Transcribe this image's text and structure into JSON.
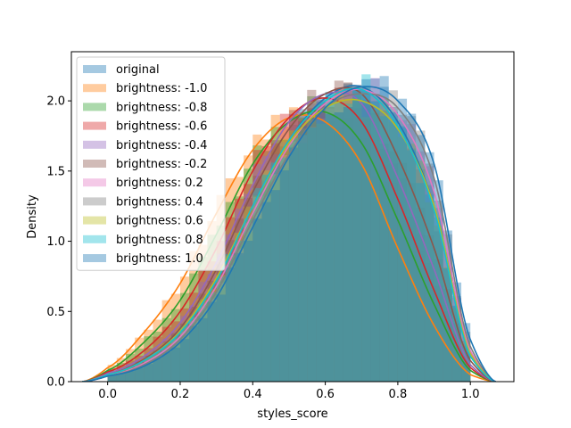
{
  "chart_data": {
    "type": "histogram+kde",
    "xlabel": "styles_score",
    "ylabel": "Density",
    "xlim": [
      -0.1,
      1.12
    ],
    "ylim": [
      0.0,
      2.35
    ],
    "x_ticks": [
      0.0,
      0.2,
      0.4,
      0.6,
      0.8,
      1.0
    ],
    "x_tick_labels": [
      "0.0",
      "0.2",
      "0.4",
      "0.6",
      "0.8",
      "1.0"
    ],
    "y_ticks": [
      0.0,
      0.5,
      1.0,
      1.5,
      2.0
    ],
    "y_tick_labels": [
      "0.0",
      "0.5",
      "1.0",
      "1.5",
      "2.0"
    ],
    "bin_edges": [
      0.0,
      0.025,
      0.05,
      0.075,
      0.1,
      0.125,
      0.15,
      0.175,
      0.2,
      0.225,
      0.25,
      0.275,
      0.3,
      0.325,
      0.35,
      0.375,
      0.4,
      0.425,
      0.45,
      0.475,
      0.5,
      0.525,
      0.55,
      0.575,
      0.6,
      0.625,
      0.65,
      0.675,
      0.7,
      0.725,
      0.75,
      0.775,
      0.8,
      0.825,
      0.85,
      0.875,
      0.9,
      0.925,
      0.95,
      0.975,
      1.0
    ],
    "legend": {
      "position": "upper-left"
    },
    "series": [
      {
        "name": "original",
        "color": "#1f77b4",
        "peak": 0.7,
        "spread": 0.19,
        "skew": 3.2,
        "x": [
          0.0,
          0.1,
          0.2,
          0.3,
          0.4,
          0.5,
          0.6,
          0.7,
          0.8,
          0.9,
          1.0
        ],
        "values": [
          0.05,
          0.15,
          0.35,
          0.72,
          1.25,
          1.72,
          2.02,
          2.1,
          1.85,
          1.25,
          0.2
        ]
      },
      {
        "name": "brightness: -1.0",
        "color": "#ff7f0e",
        "peak": 0.6,
        "spread": 0.2,
        "skew": 2.6,
        "x": [
          0.0,
          0.1,
          0.2,
          0.3,
          0.4,
          0.5,
          0.6,
          0.7,
          0.8,
          0.9,
          1.0
        ],
        "values": [
          0.1,
          0.35,
          0.7,
          1.2,
          1.65,
          1.88,
          1.85,
          1.55,
          0.95,
          0.4,
          0.05
        ]
      },
      {
        "name": "brightness: -0.8",
        "color": "#2ca02c",
        "peak": 0.63,
        "spread": 0.2,
        "skew": 2.8,
        "x": [
          0.0,
          0.1,
          0.2,
          0.3,
          0.4,
          0.5,
          0.6,
          0.7,
          0.8,
          0.9,
          1.0
        ],
        "values": [
          0.08,
          0.28,
          0.58,
          1.05,
          1.55,
          1.85,
          1.92,
          1.7,
          1.15,
          0.55,
          0.08
        ]
      },
      {
        "name": "brightness: -0.6",
        "color": "#d62728",
        "peak": 0.64,
        "spread": 0.19,
        "skew": 2.9,
        "x": [
          0.0,
          0.1,
          0.2,
          0.3,
          0.4,
          0.5,
          0.6,
          0.7,
          0.8,
          0.9,
          1.0
        ],
        "values": [
          0.07,
          0.22,
          0.5,
          0.95,
          1.5,
          1.88,
          2.02,
          1.85,
          1.3,
          0.65,
          0.1
        ]
      },
      {
        "name": "brightness: -0.4",
        "color": "#9467bd",
        "peak": 0.67,
        "spread": 0.19,
        "skew": 3.0,
        "x": [
          0.0,
          0.1,
          0.2,
          0.3,
          0.4,
          0.5,
          0.6,
          0.7,
          0.8,
          0.9,
          1.0
        ],
        "values": [
          0.06,
          0.18,
          0.42,
          0.85,
          1.4,
          1.85,
          2.05,
          1.98,
          1.45,
          0.8,
          0.12
        ]
      },
      {
        "name": "brightness: -0.2",
        "color": "#8c564b",
        "peak": 0.68,
        "spread": 0.19,
        "skew": 3.1,
        "x": [
          0.0,
          0.1,
          0.2,
          0.3,
          0.4,
          0.5,
          0.6,
          0.7,
          0.8,
          0.9,
          1.0
        ],
        "values": [
          0.05,
          0.16,
          0.38,
          0.8,
          1.35,
          1.8,
          2.05,
          2.05,
          1.6,
          0.95,
          0.15
        ]
      },
      {
        "name": "brightness: 0.2",
        "color": "#e377c2",
        "peak": 0.71,
        "spread": 0.19,
        "skew": 3.3,
        "x": [
          0.0,
          0.1,
          0.2,
          0.3,
          0.4,
          0.5,
          0.6,
          0.7,
          0.8,
          0.9,
          1.0
        ],
        "values": [
          0.04,
          0.13,
          0.32,
          0.68,
          1.2,
          1.68,
          1.98,
          2.08,
          1.9,
          1.35,
          0.22
        ]
      },
      {
        "name": "brightness: 0.4",
        "color": "#7f7f7f",
        "peak": 0.72,
        "spread": 0.19,
        "skew": 3.4,
        "x": [
          0.0,
          0.1,
          0.2,
          0.3,
          0.4,
          0.5,
          0.6,
          0.7,
          0.8,
          0.9,
          1.0
        ],
        "values": [
          0.04,
          0.12,
          0.3,
          0.64,
          1.15,
          1.62,
          1.95,
          2.05,
          1.95,
          1.45,
          0.25
        ]
      },
      {
        "name": "brightness: 0.6",
        "color": "#bcbd22",
        "peak": 0.7,
        "spread": 0.2,
        "skew": 3.0,
        "x": [
          0.0,
          0.1,
          0.2,
          0.3,
          0.4,
          0.5,
          0.6,
          0.7,
          0.8,
          0.9,
          1.0
        ],
        "values": [
          0.05,
          0.15,
          0.36,
          0.74,
          1.25,
          1.7,
          1.95,
          2.0,
          1.8,
          1.25,
          0.2
        ]
      },
      {
        "name": "brightness: 0.8",
        "color": "#17becf",
        "peak": 0.69,
        "spread": 0.19,
        "skew": 3.2,
        "x": [
          0.0,
          0.1,
          0.2,
          0.3,
          0.4,
          0.5,
          0.6,
          0.7,
          0.8,
          0.9,
          1.0
        ],
        "values": [
          0.05,
          0.15,
          0.35,
          0.72,
          1.25,
          1.72,
          2.0,
          2.08,
          1.82,
          1.22,
          0.18
        ]
      },
      {
        "name": "brightness: 1.0",
        "color": "#1f77b4",
        "peak": 0.72,
        "spread": 0.19,
        "skew": 3.6,
        "x": [
          0.0,
          0.1,
          0.2,
          0.3,
          0.4,
          0.5,
          0.6,
          0.7,
          0.8,
          0.9,
          1.0
        ],
        "values": [
          0.04,
          0.11,
          0.28,
          0.6,
          1.1,
          1.6,
          1.95,
          2.1,
          2.0,
          1.55,
          0.3
        ]
      }
    ]
  }
}
